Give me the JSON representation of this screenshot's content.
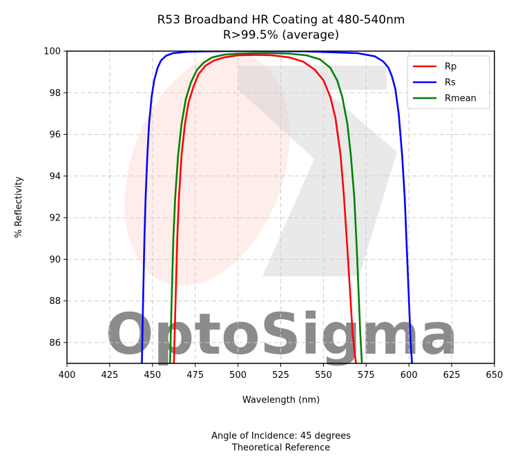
{
  "chart_data": {
    "type": "line",
    "title": "R53 Broadband HR Coating at 480-540nm",
    "subtitle": "R>99.5% (average)",
    "xlabel": "Wavelength (nm)",
    "ylabel": "% Reflectivity",
    "xlim": [
      400,
      650
    ],
    "ylim": [
      85,
      100
    ],
    "xticks": [
      400,
      425,
      450,
      475,
      500,
      525,
      550,
      575,
      600,
      625,
      650
    ],
    "yticks": [
      86,
      88,
      90,
      92,
      94,
      96,
      98,
      100
    ],
    "grid": true,
    "legend_position": "top-right",
    "series": [
      {
        "name": "Rp",
        "color": "#ff0000",
        "x": [
          462.5,
          463.5,
          464.5,
          465.5,
          467,
          469,
          471,
          474,
          477,
          481,
          486,
          492,
          500,
          510,
          520,
          530,
          538,
          545,
          550,
          554,
          557,
          560,
          562,
          564,
          565.5,
          567,
          568,
          569
        ],
        "y": [
          85,
          88,
          91,
          93,
          95,
          96.5,
          97.5,
          98.3,
          98.9,
          99.3,
          99.55,
          99.7,
          99.8,
          99.82,
          99.8,
          99.7,
          99.5,
          99.1,
          98.6,
          97.8,
          96.8,
          95,
          93,
          90.5,
          88.5,
          86.5,
          85.7,
          85
        ]
      },
      {
        "name": "Rs",
        "color": "#0000ff",
        "x": [
          443.8,
          444.5,
          445.3,
          446,
          447,
          448,
          449.5,
          451,
          453,
          455,
          458,
          462,
          470,
          480,
          500,
          540,
          570,
          580,
          585,
          588,
          590,
          592,
          594,
          596,
          597.5,
          599,
          600,
          601,
          601.8
        ],
        "y": [
          85,
          88,
          91,
          93,
          95,
          96.5,
          97.8,
          98.6,
          99.2,
          99.55,
          99.78,
          99.9,
          99.97,
          99.99,
          100,
          99.99,
          99.9,
          99.75,
          99.5,
          99.2,
          98.8,
          98.2,
          97,
          95,
          93,
          90,
          88,
          86,
          85
        ]
      },
      {
        "name": "Rmean",
        "color": "#008000",
        "x": [
          460.3,
          461.2,
          462.2,
          463.3,
          465,
          467,
          469.5,
          472.5,
          476,
          480,
          485,
          492,
          500,
          510,
          520,
          530,
          540,
          548,
          554,
          558,
          561,
          564,
          566,
          568,
          569.5,
          570.5,
          571.5,
          572.5
        ],
        "y": [
          85,
          88,
          91,
          93,
          95,
          96.5,
          97.7,
          98.5,
          99.1,
          99.45,
          99.7,
          99.83,
          99.88,
          99.9,
          99.9,
          99.88,
          99.8,
          99.6,
          99.2,
          98.6,
          97.8,
          96.5,
          95,
          93,
          90.5,
          88.5,
          86.5,
          85
        ]
      }
    ],
    "watermark": "OptoSigma"
  },
  "footer": {
    "line1": "Angle of Incidence: 45 degrees",
    "line2": "Theoretical Reference"
  }
}
